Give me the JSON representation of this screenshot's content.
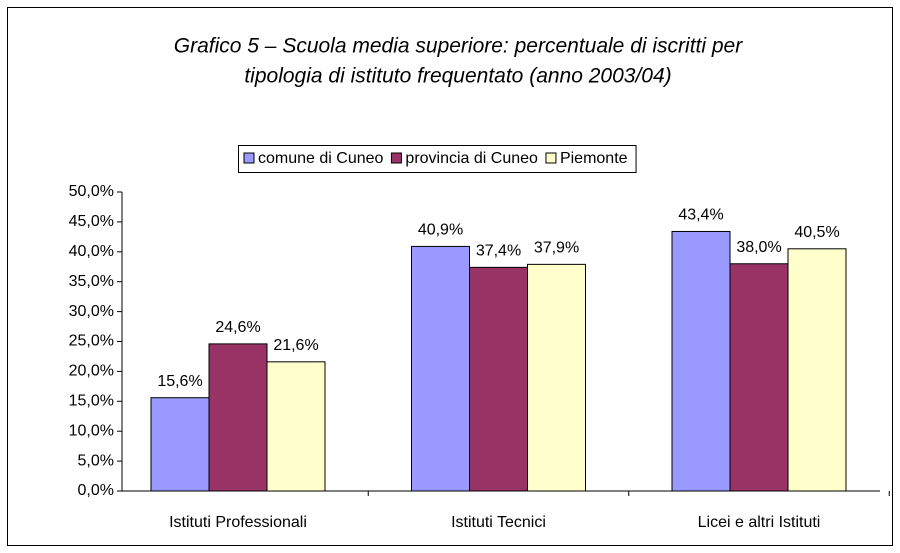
{
  "chart_data": {
    "type": "bar",
    "title": [
      "Grafico 5 – Scuola media superiore: percentuale di iscritti per",
      "tipologia di istituto frequentato (anno 2003/04)"
    ],
    "categories": [
      "Istituti Professionali",
      "Istituti Tecnici",
      "Licei e altri Istituti"
    ],
    "series": [
      {
        "name": "comune di Cuneo",
        "color": "#9999ff",
        "values": [
          15.6,
          40.9,
          43.4
        ],
        "value_labels": [
          "15,6%",
          "40,9%",
          "43,4%"
        ]
      },
      {
        "name": "provincia di Cuneo",
        "color": "#993366",
        "values": [
          24.6,
          37.4,
          38.0
        ],
        "value_labels": [
          "24,6%",
          "37,4%",
          "38,0%"
        ]
      },
      {
        "name": "Piemonte",
        "color": "#ffffcc",
        "values": [
          21.6,
          37.9,
          40.5
        ],
        "value_labels": [
          "21,6%",
          "37,9%",
          "40,5%"
        ]
      }
    ],
    "ylim": [
      0,
      50
    ],
    "yticks": [
      {
        "value": 0,
        "label": "0,0%"
      },
      {
        "value": 5,
        "label": "5,0%"
      },
      {
        "value": 10,
        "label": "10,0%"
      },
      {
        "value": 15,
        "label": "15,0%"
      },
      {
        "value": 20,
        "label": "20,0%"
      },
      {
        "value": 25,
        "label": "25,0%"
      },
      {
        "value": 30,
        "label": "30,0%"
      },
      {
        "value": 35,
        "label": "35,0%"
      },
      {
        "value": 40,
        "label": "40,0%"
      },
      {
        "value": 45,
        "label": "45,0%"
      },
      {
        "value": 50,
        "label": "50,0%"
      }
    ],
    "grid": false,
    "legend": "top"
  }
}
